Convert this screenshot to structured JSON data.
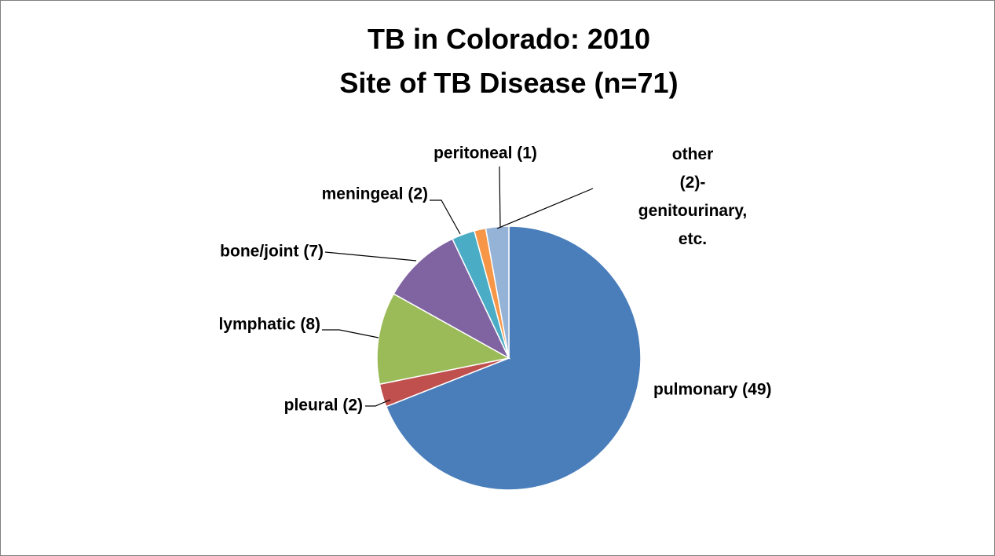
{
  "chart_data": {
    "type": "pie",
    "title": "TB in Colorado: 2010",
    "subtitle": "Site of TB Disease (n=71)",
    "categories": [
      "pulmonary (49)",
      "pleural (2)",
      "lymphatic (8)",
      "bone/joint (7)",
      "meningeal (2)",
      "peritoneal (1)",
      "other (2)- genitourinary, etc."
    ],
    "values": [
      49,
      2,
      8,
      7,
      2,
      1,
      2
    ],
    "colors": [
      "#4a7ebb",
      "#c0504d",
      "#9bbb59",
      "#8064a2",
      "#4bacc6",
      "#f79646",
      "#95b3d7"
    ]
  }
}
